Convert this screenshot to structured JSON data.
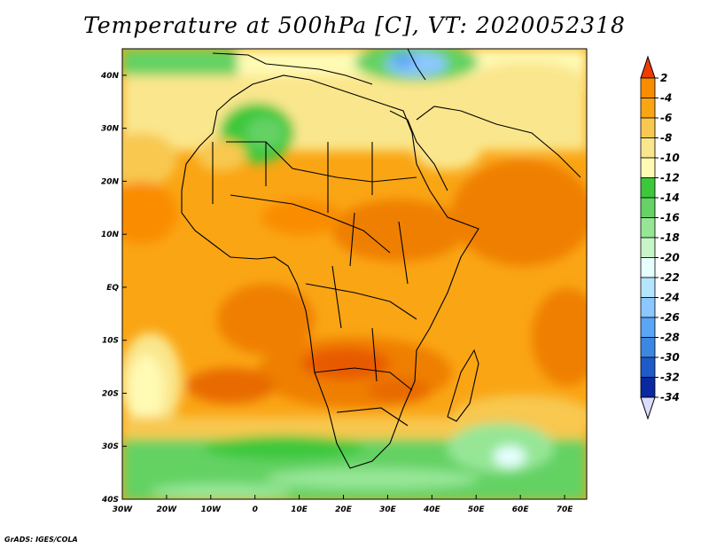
{
  "title": "Temperature at 500hPa [C], VT: 2020052318",
  "credit": "GrADS: IGES/COLA",
  "map": {
    "type": "filled-contour",
    "variable": "Temperature at 500hPa",
    "units": "C",
    "valid_time": "2020052318",
    "lon_range": [
      -30,
      75
    ],
    "lat_range": [
      -40,
      45
    ],
    "lon_ticks": [
      "30W",
      "20W",
      "10W",
      "0",
      "10E",
      "20E",
      "30E",
      "40E",
      "50E",
      "60E",
      "70E"
    ],
    "lat_ticks": [
      "40S",
      "30S",
      "20S",
      "10S",
      "EQ",
      "10N",
      "20N",
      "30N",
      "40N"
    ],
    "region": "Africa"
  },
  "colorbar": {
    "labels": [
      "2",
      "-4",
      "-6",
      "-8",
      "-10",
      "-12",
      "-14",
      "-16",
      "-18",
      "-20",
      "-22",
      "-24",
      "-26",
      "-28",
      "-30",
      "-32",
      "-34"
    ],
    "top_color": "#f03c00",
    "bottom_color": "#dcdcff",
    "colors": [
      "#ef5000",
      "#fa8c00",
      "#faa514",
      "#f8c850",
      "#fae68c",
      "#fffab4",
      "#3dc83c",
      "#64d264",
      "#96e696",
      "#c8f5c8",
      "#e6ffff",
      "#b4e6ff",
      "#8cc8ff",
      "#5aa5f5",
      "#3c87e1",
      "#1e5ac8",
      "#0a28a0",
      "#000a5a"
    ]
  }
}
